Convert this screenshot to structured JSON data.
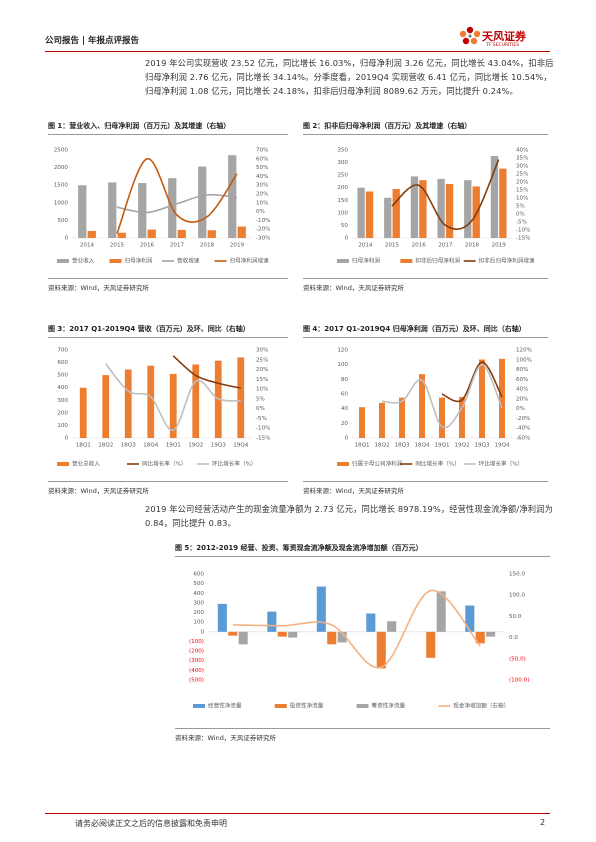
{
  "header": {
    "report_type": "公司报告 | 年报点评报告",
    "logo_cn": "天风证券",
    "logo_en": "TF SECURITIES"
  },
  "paragraphs": [
    "2019 年公司实现营收 23.52 亿元，同比增长 16.03%，归母净利润 3.26 亿元，同比增长 43.04%，扣非后归母净利润 2.76 亿元，同比增长 34.14%。分季度看，2019Q4 实现营收 6.41 亿元，同比增长 10.54%，归母净利润 1.08 亿元，同比增长 24.18%，扣非后归母净利润 8089.62 万元，同比提升 0.24%。",
    "2019 年公司经营活动产生的现金流量净额为 2.73 亿元，同比增长 8978.19%，经营性现金流净额/净利润为 0.84，同比提升 0.83。"
  ],
  "chart_data": [
    {
      "type": "bar",
      "title": "图 1：营业收入、归母净利润（百万元）及其增速（右轴）",
      "source": "资料来源：Wind，天风证券研究所",
      "categories": [
        "2014",
        "2015",
        "2016",
        "2017",
        "2018",
        "2019"
      ],
      "series": [
        {
          "name": "营业收入",
          "type": "bar",
          "color": "#a5a5a5",
          "values": [
            1500,
            1580,
            1560,
            1700,
            2030,
            2352
          ]
        },
        {
          "name": "归母净利润",
          "type": "bar",
          "color": "#ed7d31",
          "values": [
            200,
            150,
            240,
            230,
            220,
            326
          ]
        },
        {
          "name": "营收增速",
          "type": "line",
          "axis": "y2",
          "color": "#a5a5a5",
          "values": [
            null,
            5,
            -1,
            9,
            19,
            16
          ]
        },
        {
          "name": "归母净利润增速",
          "type": "line",
          "axis": "y2",
          "color": "#c55a11",
          "values": [
            null,
            -25,
            60,
            -4,
            -6,
            43
          ]
        }
      ],
      "ylim": [
        0,
        2500
      ],
      "yticks": [
        0,
        500,
        1000,
        1500,
        2000,
        2500
      ],
      "y2lim": [
        -30,
        70
      ],
      "y2ticks": [
        {
          "value": -30,
          "label": "-30%"
        },
        {
          "value": -20,
          "label": "-20%"
        },
        {
          "value": -10,
          "label": "-10%"
        },
        {
          "value": 0,
          "label": "0%"
        },
        {
          "value": 10,
          "label": "10%"
        },
        {
          "value": 20,
          "label": "20%"
        },
        {
          "value": 30,
          "label": "30%"
        },
        {
          "value": 40,
          "label": "40%"
        },
        {
          "value": 50,
          "label": "50%"
        },
        {
          "value": 60,
          "label": "60%"
        },
        {
          "value": 70,
          "label": "70%"
        }
      ],
      "smooth": true
    },
    {
      "type": "bar",
      "title": "图 2：扣非后归母净利润（百万元）及其增速（右轴）",
      "source": "资料来源：Wind，天风证券研究所",
      "categories": [
        "2014",
        "2015",
        "2016",
        "2017",
        "2018",
        "2019"
      ],
      "series": [
        {
          "name": "归母净利润",
          "type": "bar",
          "color": "#a5a5a5",
          "values": [
            200,
            160,
            245,
            235,
            230,
            326
          ]
        },
        {
          "name": "扣非后归母净利润",
          "type": "bar",
          "color": "#ed7d31",
          "values": [
            185,
            195,
            230,
            215,
            205,
            276
          ]
        },
        {
          "name": "扣非后归母净利润增速",
          "type": "line",
          "axis": "y2",
          "color": "#843c0c",
          "values": [
            null,
            5,
            18,
            -7,
            -4,
            34
          ]
        }
      ],
      "ylim": [
        0,
        350
      ],
      "yticks": [
        0,
        50,
        100,
        150,
        200,
        250,
        300,
        350
      ],
      "y2lim": [
        -15,
        40
      ],
      "y2ticks": [
        {
          "value": -15,
          "label": "-15%"
        },
        {
          "value": -10,
          "label": "-10%"
        },
        {
          "value": -5,
          "label": "-5%"
        },
        {
          "value": 0,
          "label": "0%"
        },
        {
          "value": 5,
          "label": "5%"
        },
        {
          "value": 10,
          "label": "10%"
        },
        {
          "value": 15,
          "label": "15%"
        },
        {
          "value": 20,
          "label": "20%"
        },
        {
          "value": 25,
          "label": "25%"
        },
        {
          "value": 30,
          "label": "30%"
        },
        {
          "value": 35,
          "label": "35%"
        },
        {
          "value": 40,
          "label": "40%"
        }
      ],
      "smooth": true
    },
    {
      "type": "bar",
      "title": "图 3：2017 Q1-2019Q4 营收（百万元）及环、同比（右轴）",
      "source": "资料来源：Wind，天风证券研究所",
      "categories": [
        "18Q1",
        "18Q2",
        "18Q3",
        "18Q4",
        "19Q1",
        "19Q2",
        "19Q3",
        "19Q4"
      ],
      "series": [
        {
          "name": "营业总收入",
          "type": "bar",
          "color": "#ed7d31",
          "values": [
            400,
            500,
            545,
            575,
            510,
            585,
            615,
            641
          ]
        },
        {
          "name": "同比增长率（%）",
          "type": "line",
          "axis": "y2",
          "color": "#843c0c",
          "values": [
            null,
            null,
            null,
            null,
            27,
            17,
            13,
            10.5
          ]
        },
        {
          "name": "环比增长率（%）",
          "type": "line",
          "axis": "y2",
          "color": "#bfbfbf",
          "values": [
            null,
            23,
            9,
            6,
            -11,
            14,
            5,
            4
          ]
        }
      ],
      "ylim": [
        0,
        700
      ],
      "yticks": [
        0,
        100,
        200,
        300,
        400,
        500,
        600,
        700
      ],
      "y2lim": [
        -15,
        30
      ],
      "y2ticks": [
        {
          "value": -15,
          "label": "-15%"
        },
        {
          "value": -10,
          "label": "-10%"
        },
        {
          "value": -5,
          "label": "-5%"
        },
        {
          "value": 0,
          "label": "0%"
        },
        {
          "value": 5,
          "label": "5%"
        },
        {
          "value": 10,
          "label": "10%"
        },
        {
          "value": 15,
          "label": "15%"
        },
        {
          "value": 20,
          "label": "20%"
        },
        {
          "value": 25,
          "label": "25%"
        },
        {
          "value": 30,
          "label": "30%"
        }
      ],
      "smooth": true
    },
    {
      "type": "bar",
      "title": "图 4：2017 Q1-2019Q4 归母净利润（百万元）及环、同比（右轴）",
      "source": "资料来源：Wind，天风证券研究所",
      "categories": [
        "18Q1",
        "18Q2",
        "18Q3",
        "18Q4",
        "19Q1",
        "19Q2",
        "19Q3",
        "19Q4"
      ],
      "series": [
        {
          "name": "归属于母公司净利润",
          "type": "bar",
          "color": "#ed7d31",
          "values": [
            42,
            48,
            55,
            87,
            55,
            56,
            107,
            108
          ]
        },
        {
          "name": "同比增长率（%）",
          "type": "line",
          "axis": "y2",
          "color": "#843c0c",
          "values": [
            null,
            null,
            null,
            null,
            30,
            18,
            95,
            24
          ]
        },
        {
          "name": "环比增长率（%）",
          "type": "line",
          "axis": "y2",
          "color": "#bfbfbf",
          "values": [
            null,
            15,
            15,
            58,
            -37,
            2,
            90,
            1
          ]
        }
      ],
      "ylim": [
        0,
        120
      ],
      "yticks": [
        0,
        20,
        40,
        60,
        80,
        100,
        120
      ],
      "y2lim": [
        -60,
        120
      ],
      "y2ticks": [
        {
          "value": -60,
          "label": "-60%"
        },
        {
          "value": -40,
          "label": "-40%"
        },
        {
          "value": -20,
          "label": "-20%"
        },
        {
          "value": 0,
          "label": "0%"
        },
        {
          "value": 20,
          "label": "20%"
        },
        {
          "value": 40,
          "label": "40%"
        },
        {
          "value": 60,
          "label": "60%"
        },
        {
          "value": 80,
          "label": "80%"
        },
        {
          "value": 100,
          "label": "100%"
        },
        {
          "value": 120,
          "label": "120%"
        }
      ],
      "smooth": true
    },
    {
      "type": "bar",
      "title": "图 5：2012-2019 经营、投资、筹资现金流净额及现金流净增加额（百万元）",
      "source": "资料来源：Wind，天风证券研究所",
      "categories": [
        null,
        null,
        null,
        null,
        null,
        null
      ],
      "series": [
        {
          "name": "经营性净流量",
          "type": "bar",
          "color": "#5b9bd5",
          "values": [
            290,
            210,
            470,
            190,
            0,
            273
          ]
        },
        {
          "name": "投资性净流量",
          "type": "bar",
          "color": "#ed7d31",
          "values": [
            -40,
            -50,
            -130,
            -380,
            -270,
            -120
          ]
        },
        {
          "name": "筹资性净流量",
          "type": "bar",
          "color": "#a5a5a5",
          "values": [
            -130,
            -60,
            -110,
            110,
            420,
            -50
          ]
        },
        {
          "name": "现金净增加额（右轴）",
          "type": "line",
          "axis": "y2",
          "color": "#f4b183",
          "values": [
            30,
            28,
            30,
            -70,
            111,
            -20
          ]
        }
      ],
      "ylim": [
        -500,
        600
      ],
      "yticks": [
        {
          "value": -500,
          "label": "(500)"
        },
        {
          "value": -400,
          "label": "(400)"
        },
        {
          "value": -300,
          "label": "(300)"
        },
        {
          "value": -200,
          "label": "(200)"
        },
        {
          "value": -100,
          "label": "(100)"
        },
        0,
        100,
        200,
        300,
        400,
        500,
        600
      ],
      "y2lim": [
        -100,
        150
      ],
      "y2ticks": [
        {
          "value": -100,
          "label": "(100.0)"
        },
        {
          "value": -50,
          "label": "(50.0)"
        },
        {
          "value": 0,
          "label": "0.0"
        },
        {
          "value": 50,
          "label": "50.0"
        },
        {
          "value": 100,
          "label": "100.0"
        },
        {
          "value": 150,
          "label": "150.0"
        }
      ],
      "negative_label_color": "#ff0000",
      "smooth": true
    }
  ],
  "footer": {
    "disclaimer": "请务必阅读正文之后的信息披露和免责申明",
    "page_number": "2"
  }
}
